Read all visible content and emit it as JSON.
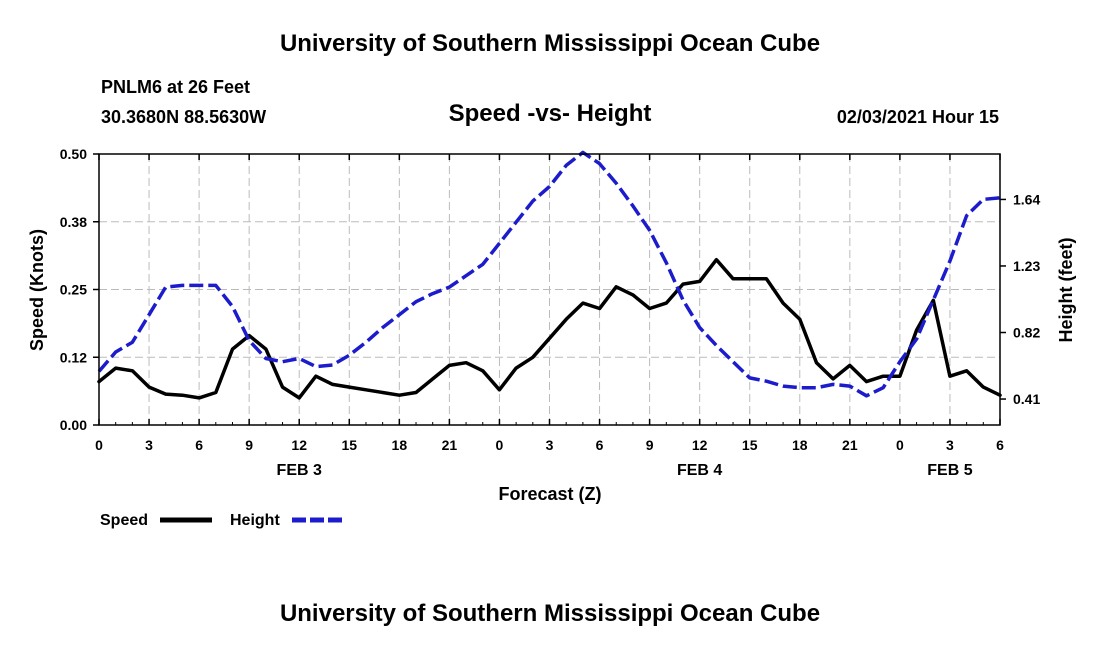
{
  "header": {
    "title": "University of Southern Mississippi Ocean Cube",
    "station": "PNLM6 at 26 Feet",
    "coords": "30.3680N 88.5630W",
    "chart_title": "Speed -vs- Height",
    "datetime": "02/03/2021 Hour 15"
  },
  "footer": {
    "title": "University of Southern Mississippi Ocean Cube"
  },
  "legend": {
    "speed_label": "Speed",
    "height_label": "Height"
  },
  "colors": {
    "speed": "#000000",
    "height": "#1c1ccc",
    "grid": "#bbbbbb"
  },
  "chart_data": {
    "type": "line",
    "title": "Speed -vs- Height",
    "xlabel": "Forecast (Z)",
    "ylabel": "Speed (Knots)",
    "y2label": "Height (feet)",
    "ylim": [
      0,
      0.5
    ],
    "y2lim": [
      0.25,
      1.92
    ],
    "yticks": [
      "0.00",
      "0.12",
      "0.25",
      "0.38",
      "0.50"
    ],
    "y2ticks": [
      {
        "label": "0.41",
        "value": 0.41
      },
      {
        "label": "0.82",
        "value": 0.82
      },
      {
        "label": "1.23",
        "value": 1.23
      },
      {
        "label": "1.64",
        "value": 1.64
      }
    ],
    "xlim": [
      0,
      54
    ],
    "xticks": [
      "0",
      "3",
      "6",
      "9",
      "12",
      "15",
      "18",
      "21",
      "0",
      "3",
      "6",
      "9",
      "12",
      "15",
      "18",
      "21",
      "0",
      "3",
      "6"
    ],
    "date_labels": [
      {
        "label": "FEB 3",
        "hour": 12
      },
      {
        "label": "FEB 4",
        "hour": 36
      },
      {
        "label": "FEB 5",
        "hour": 51
      }
    ],
    "series": [
      {
        "name": "Speed",
        "axis": "left",
        "style": "solid",
        "x": [
          0,
          1,
          2,
          3,
          4,
          5,
          6,
          7,
          8,
          9,
          10,
          11,
          12,
          13,
          14,
          15,
          16,
          17,
          18,
          19,
          20,
          21,
          22,
          23,
          24,
          25,
          26,
          27,
          28,
          29,
          30,
          31,
          32,
          33,
          34,
          35,
          36,
          37,
          38,
          39,
          40,
          41,
          42,
          43,
          44,
          45,
          46,
          47,
          48,
          49,
          50,
          51,
          52,
          53,
          54
        ],
        "values": [
          0.08,
          0.105,
          0.1,
          0.07,
          0.057,
          0.055,
          0.05,
          0.06,
          0.14,
          0.165,
          0.14,
          0.07,
          0.05,
          0.09,
          0.075,
          0.07,
          0.065,
          0.06,
          0.055,
          0.06,
          0.085,
          0.11,
          0.115,
          0.1,
          0.065,
          0.105,
          0.125,
          0.16,
          0.195,
          0.225,
          0.215,
          0.255,
          0.24,
          0.215,
          0.225,
          0.26,
          0.265,
          0.305,
          0.27,
          0.27,
          0.27,
          0.225,
          0.195,
          0.115,
          0.085,
          0.11,
          0.08,
          0.09,
          0.09,
          0.175,
          0.23,
          0.09,
          0.1,
          0.07,
          0.055
        ]
      },
      {
        "name": "Height",
        "axis": "right",
        "style": "dashed",
        "x": [
          0,
          1,
          2,
          3,
          4,
          5,
          6,
          7,
          8,
          9,
          10,
          11,
          12,
          13,
          14,
          15,
          16,
          17,
          18,
          19,
          20,
          21,
          22,
          23,
          24,
          25,
          26,
          27,
          28,
          29,
          30,
          31,
          32,
          33,
          34,
          35,
          36,
          37,
          38,
          39,
          40,
          41,
          42,
          43,
          44,
          45,
          46,
          47,
          48,
          49,
          50,
          51,
          52,
          53,
          54
        ],
        "values": [
          0.58,
          0.7,
          0.76,
          0.93,
          1.1,
          1.11,
          1.11,
          1.11,
          0.98,
          0.77,
          0.66,
          0.64,
          0.66,
          0.61,
          0.62,
          0.68,
          0.76,
          0.85,
          0.93,
          1.01,
          1.06,
          1.1,
          1.17,
          1.24,
          1.37,
          1.5,
          1.63,
          1.72,
          1.85,
          1.93,
          1.86,
          1.74,
          1.6,
          1.45,
          1.25,
          1.02,
          0.85,
          0.74,
          0.64,
          0.54,
          0.52,
          0.49,
          0.48,
          0.48,
          0.5,
          0.49,
          0.43,
          0.48,
          0.64,
          0.78,
          1.02,
          1.26,
          1.54,
          1.64,
          1.65
        ]
      }
    ]
  }
}
